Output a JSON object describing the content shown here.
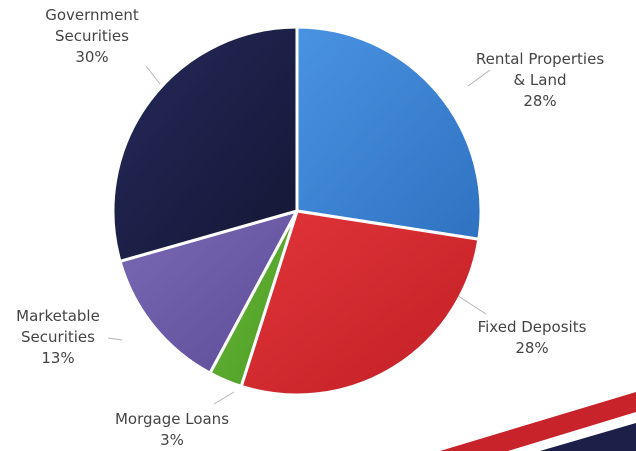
{
  "chart_data": {
    "type": "pie",
    "title": "",
    "slices": [
      {
        "name_lines": [
          "Rental Properties",
          "& Land"
        ],
        "value": 28,
        "value_label": "28%",
        "color": "#3a82d4"
      },
      {
        "name_lines": [
          "Fixed Deposits"
        ],
        "value": 28,
        "value_label": "28%",
        "color": "#d9282c"
      },
      {
        "name_lines": [
          "Morgage Loans"
        ],
        "value": 3,
        "value_label": "3%",
        "color": "#5aab2e"
      },
      {
        "name_lines": [
          "Marketable",
          "Securities"
        ],
        "value": 13,
        "value_label": "13%",
        "color": "#6b5aa6"
      },
      {
        "name_lines": [
          "Government",
          "Securities"
        ],
        "value": 30,
        "value_label": "30%",
        "color": "#1c1f48"
      }
    ],
    "start_angle": "12 o'clock",
    "direction": "clockwise",
    "legend": "none",
    "labels": "outside-with-leader-lines"
  },
  "decor": {
    "stripe_red": "#c8222a",
    "stripe_navy": "#1c1f48"
  }
}
